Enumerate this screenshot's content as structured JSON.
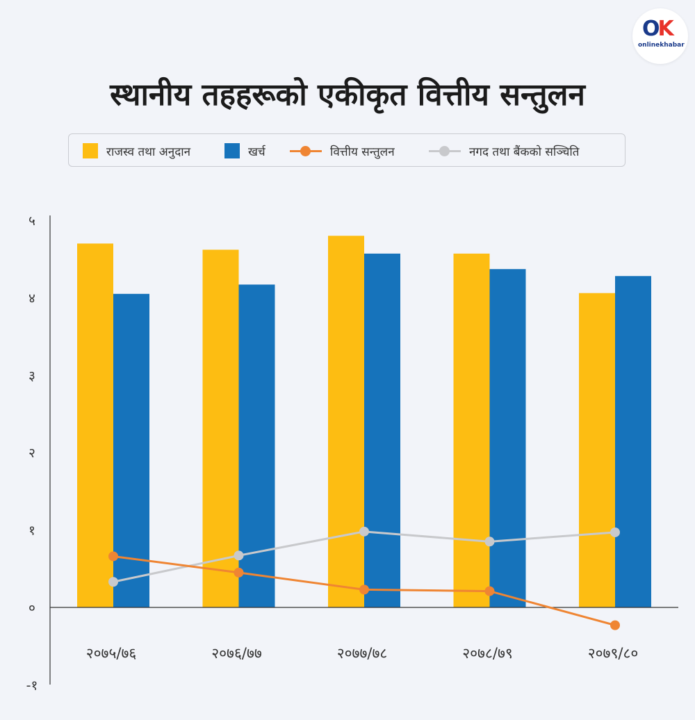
{
  "logo": {
    "brand": "onlinekhabar",
    "mark_o": "O",
    "mark_k": "K",
    "text": "onlinekhabar"
  },
  "title": "स्थानीय तहहरूको एकीकृत वित्तीय सन्तुलन",
  "legend": {
    "revenue": {
      "label": "राजस्व तथा अनुदान",
      "color": "#fdbd12"
    },
    "expense": {
      "label": "खर्च",
      "color": "#1673bb"
    },
    "balance": {
      "label": "वित्तीय सन्तुलन",
      "color": "#ef8533"
    },
    "cash": {
      "label": "नगद तथा बैंकको सञ्चिति",
      "color": "#c8c9cc"
    }
  },
  "chart_data": {
    "type": "bar",
    "title": "स्थानीय तहहरूको एकीकृत वित्तीय सन्तुलन",
    "categories": [
      "२०७५/७६",
      "२०७६/७७",
      "२०७७/७८",
      "२०७८/७९",
      "२०७९/८०"
    ],
    "y_ticks": [
      {
        "value": 5,
        "label": "५"
      },
      {
        "value": 4,
        "label": "४"
      },
      {
        "value": 3,
        "label": "३"
      },
      {
        "value": 2,
        "label": "२"
      },
      {
        "value": 1,
        "label": "१"
      },
      {
        "value": 0,
        "label": "०"
      },
      {
        "value": -1,
        "label": "-१"
      }
    ],
    "ylim": [
      -1,
      5
    ],
    "grid": false,
    "legend_position": "top",
    "series": [
      {
        "name": "राजस्व तथा अनुदान",
        "type": "bar",
        "color": "#fdbd12",
        "values": [
          4.7,
          4.62,
          4.8,
          4.57,
          4.06
        ]
      },
      {
        "name": "खर्च",
        "type": "bar",
        "color": "#1673bb",
        "values": [
          4.05,
          4.17,
          4.57,
          4.37,
          4.28
        ]
      },
      {
        "name": "वित्तीय सन्तुलन",
        "type": "line",
        "color": "#ef8533",
        "values": [
          0.66,
          0.45,
          0.23,
          0.21,
          -0.23
        ]
      },
      {
        "name": "नगद तथा बैंकको सञ्चिति",
        "type": "line",
        "color": "#c8c9cc",
        "values": [
          0.33,
          0.67,
          0.98,
          0.85,
          0.97
        ]
      }
    ]
  }
}
